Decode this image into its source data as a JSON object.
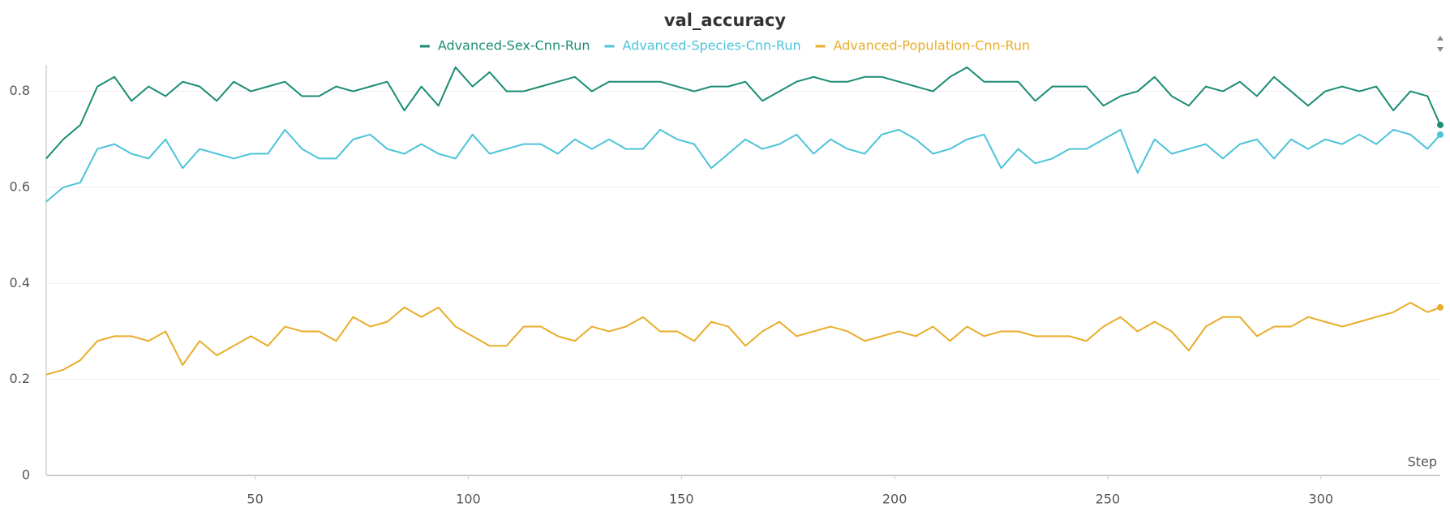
{
  "chart_data": {
    "type": "line",
    "title": "val_accuracy",
    "x_label": "Step",
    "x": [
      1,
      5,
      9,
      13,
      17,
      21,
      25,
      29,
      33,
      37,
      41,
      45,
      49,
      53,
      57,
      61,
      65,
      69,
      73,
      77,
      81,
      85,
      89,
      93,
      97,
      101,
      105,
      109,
      113,
      117,
      121,
      125,
      129,
      133,
      137,
      141,
      145,
      149,
      153,
      157,
      161,
      165,
      169,
      173,
      177,
      181,
      185,
      189,
      193,
      197,
      201,
      205,
      209,
      213,
      217,
      221,
      225,
      229,
      233,
      237,
      241,
      245,
      249,
      253,
      257,
      261,
      265,
      269,
      273,
      277,
      281,
      285,
      289,
      293,
      297,
      301,
      305,
      309,
      313,
      317,
      321,
      325,
      328
    ],
    "series": [
      {
        "name": "Advanced-Sex-Cnn-Run",
        "color": "#1a8c74",
        "values": [
          0.66,
          0.7,
          0.73,
          0.81,
          0.83,
          0.78,
          0.81,
          0.79,
          0.82,
          0.81,
          0.78,
          0.82,
          0.8,
          0.81,
          0.82,
          0.79,
          0.79,
          0.81,
          0.8,
          0.81,
          0.82,
          0.76,
          0.81,
          0.77,
          0.85,
          0.81,
          0.84,
          0.8,
          0.8,
          0.81,
          0.82,
          0.83,
          0.8,
          0.82,
          0.82,
          0.82,
          0.82,
          0.81,
          0.8,
          0.81,
          0.81,
          0.82,
          0.78,
          0.8,
          0.82,
          0.83,
          0.82,
          0.82,
          0.83,
          0.83,
          0.82,
          0.81,
          0.8,
          0.83,
          0.85,
          0.82,
          0.82,
          0.82,
          0.78,
          0.81,
          0.81,
          0.81,
          0.77,
          0.79,
          0.8,
          0.83,
          0.79,
          0.77,
          0.81,
          0.8,
          0.82,
          0.79,
          0.83,
          0.8,
          0.77,
          0.8,
          0.81,
          0.8,
          0.81,
          0.76,
          0.8,
          0.79,
          0.73
        ]
      },
      {
        "name": "Advanced-Species-Cnn-Run",
        "color": "#4cc3d9",
        "values": [
          0.57,
          0.6,
          0.61,
          0.68,
          0.69,
          0.67,
          0.66,
          0.7,
          0.64,
          0.68,
          0.67,
          0.66,
          0.67,
          0.67,
          0.72,
          0.68,
          0.66,
          0.66,
          0.7,
          0.71,
          0.68,
          0.67,
          0.69,
          0.67,
          0.66,
          0.71,
          0.67,
          0.68,
          0.69,
          0.69,
          0.67,
          0.7,
          0.68,
          0.7,
          0.68,
          0.68,
          0.72,
          0.7,
          0.69,
          0.64,
          0.67,
          0.7,
          0.68,
          0.69,
          0.71,
          0.67,
          0.7,
          0.68,
          0.67,
          0.71,
          0.72,
          0.7,
          0.67,
          0.68,
          0.7,
          0.71,
          0.64,
          0.68,
          0.65,
          0.66,
          0.68,
          0.68,
          0.7,
          0.72,
          0.63,
          0.7,
          0.67,
          0.68,
          0.69,
          0.66,
          0.69,
          0.7,
          0.66,
          0.7,
          0.68,
          0.7,
          0.69,
          0.71,
          0.69,
          0.72,
          0.71,
          0.68,
          0.71
        ]
      },
      {
        "name": "Advanced-Population-Cnn-Run",
        "color": "#e8ad2a",
        "values": [
          0.21,
          0.22,
          0.24,
          0.28,
          0.29,
          0.29,
          0.28,
          0.3,
          0.23,
          0.28,
          0.25,
          0.27,
          0.29,
          0.27,
          0.31,
          0.3,
          0.3,
          0.28,
          0.33,
          0.31,
          0.32,
          0.35,
          0.33,
          0.35,
          0.31,
          0.29,
          0.27,
          0.27,
          0.31,
          0.31,
          0.29,
          0.28,
          0.31,
          0.3,
          0.31,
          0.33,
          0.3,
          0.3,
          0.28,
          0.32,
          0.31,
          0.27,
          0.3,
          0.32,
          0.29,
          0.3,
          0.31,
          0.3,
          0.28,
          0.29,
          0.3,
          0.29,
          0.31,
          0.28,
          0.31,
          0.29,
          0.3,
          0.3,
          0.29,
          0.29,
          0.29,
          0.28,
          0.31,
          0.33,
          0.3,
          0.32,
          0.3,
          0.26,
          0.31,
          0.33,
          0.33,
          0.29,
          0.31,
          0.31,
          0.33,
          0.32,
          0.31,
          0.32,
          0.33,
          0.34,
          0.36,
          0.34,
          0.35
        ]
      }
    ],
    "xlim": [
      1,
      328
    ],
    "ylim": [
      0,
      0.855
    ],
    "xticks": [
      50,
      100,
      150,
      200,
      250,
      300
    ],
    "yticks": [
      0,
      0.2,
      0.4,
      0.6,
      0.8
    ],
    "grid": true
  }
}
